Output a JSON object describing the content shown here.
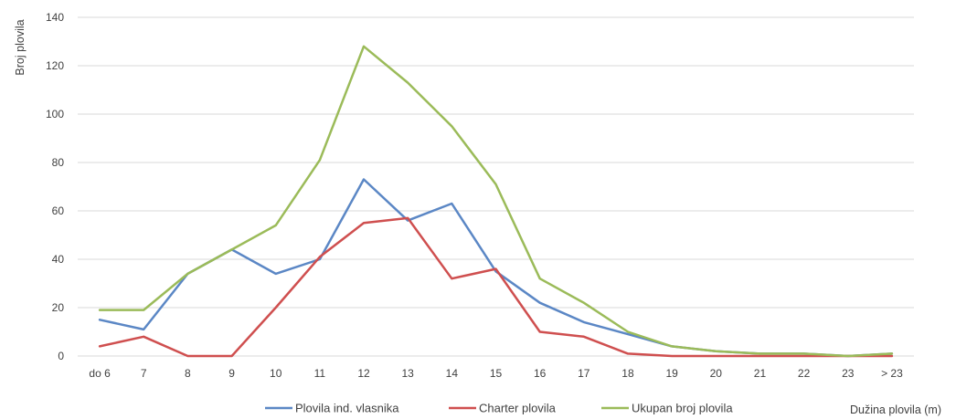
{
  "chart_data": {
    "type": "line",
    "title": "",
    "xlabel": "Dužina plovila (m)",
    "ylabel": "Broj plovila",
    "ylim": [
      0,
      140
    ],
    "yticks": [
      0,
      20,
      40,
      60,
      80,
      100,
      120,
      140
    ],
    "grid": true,
    "legend_position": "bottom",
    "categories": [
      "do 6",
      "7",
      "8",
      "9",
      "10",
      "11",
      "12",
      "13",
      "14",
      "15",
      "16",
      "17",
      "18",
      "19",
      "20",
      "21",
      "22",
      "23",
      "> 23"
    ],
    "series": [
      {
        "name": "Plovila ind. vlasnika",
        "color": "#5b87c5",
        "values": [
          15,
          11,
          34,
          44,
          34,
          40,
          73,
          56,
          63,
          35,
          22,
          14,
          9,
          4,
          2,
          1,
          1,
          0,
          1
        ]
      },
      {
        "name": "Charter plovila",
        "color": "#cf4f4f",
        "values": [
          4,
          8,
          0,
          0,
          20,
          41,
          55,
          57,
          32,
          36,
          10,
          8,
          1,
          0,
          0,
          0,
          0,
          0,
          0
        ]
      },
      {
        "name": "Ukupan broj plovila",
        "color": "#9bbb59",
        "values": [
          19,
          19,
          34,
          44,
          54,
          81,
          128,
          113,
          95,
          71,
          32,
          22,
          10,
          4,
          2,
          1,
          1,
          0,
          1
        ]
      }
    ]
  }
}
